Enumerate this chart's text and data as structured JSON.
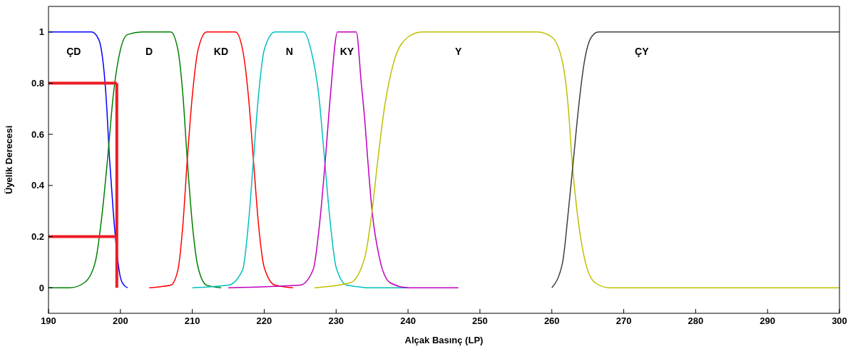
{
  "chart_data": {
    "type": "line",
    "xlabel": "Alçak Basınç (LP)",
    "ylabel": "Üyelik Derecesi",
    "xlim": [
      190,
      300
    ],
    "ylim": [
      -0.1,
      1.1
    ],
    "xticks": [
      190,
      200,
      210,
      220,
      230,
      240,
      250,
      260,
      270,
      280,
      290,
      300
    ],
    "yticks": [
      0,
      0.2,
      0.4,
      0.6,
      0.8,
      1
    ],
    "marker": "none",
    "line_style": "solid",
    "series": [
      {
        "name": "ÇD",
        "color": "#0000ff",
        "x": [
          190,
          196,
          197,
          198,
          198.5,
          199,
          200,
          200.5,
          201
        ],
        "values": [
          1,
          1,
          0.97,
          0.75,
          0.5,
          0.3,
          0.04,
          0.01,
          0
        ]
      },
      {
        "name": "D",
        "color": "#008000",
        "x": [
          190,
          193,
          195,
          196.5,
          197.5,
          198.2,
          199,
          200,
          201,
          203,
          207,
          208,
          208.7,
          209.3,
          210,
          210.8,
          212,
          214
        ],
        "values": [
          0,
          0,
          0.02,
          0.1,
          0.3,
          0.5,
          0.75,
          0.93,
          0.99,
          1,
          1,
          0.93,
          0.75,
          0.5,
          0.25,
          0.08,
          0.01,
          0
        ]
      },
      {
        "name": "KD",
        "color": "#ff0000",
        "x": [
          204,
          207,
          208,
          208.7,
          209.3,
          210,
          210.8,
          212,
          216,
          217,
          217.8,
          218.5,
          219.2,
          220,
          221.5,
          224
        ],
        "values": [
          0,
          0.01,
          0.07,
          0.25,
          0.5,
          0.75,
          0.93,
          1,
          1,
          0.93,
          0.75,
          0.5,
          0.25,
          0.08,
          0.01,
          0
        ]
      },
      {
        "name": "N",
        "color": "#00bfbf",
        "x": [
          210,
          215,
          217,
          217.8,
          218.5,
          219.2,
          220,
          221.5,
          225.5,
          226.5,
          227.6,
          228.4,
          229.2,
          230,
          231.5,
          235,
          240
        ],
        "values": [
          0,
          0.01,
          0.07,
          0.25,
          0.5,
          0.75,
          0.93,
          1,
          1,
          0.93,
          0.75,
          0.5,
          0.25,
          0.08,
          0.01,
          0,
          0
        ]
      },
      {
        "name": "KY",
        "color": "#bf00bf",
        "x": [
          215,
          225,
          226.8,
          227.7,
          228.5,
          229.2,
          230.2,
          232.8,
          233.5,
          234,
          234.4,
          235,
          236,
          237.5,
          240,
          247
        ],
        "values": [
          0,
          0.01,
          0.07,
          0.25,
          0.5,
          0.75,
          1,
          1,
          0.8,
          0.65,
          0.5,
          0.3,
          0.12,
          0.02,
          0,
          0
        ]
      },
      {
        "name": "Y",
        "color": "#bfbf00",
        "x": [
          227,
          232,
          234,
          235,
          235.8,
          236.7,
          238,
          240,
          242,
          258,
          260,
          261.5,
          262.3,
          262.8,
          263.5,
          264.5,
          266,
          268,
          300
        ],
        "values": [
          0,
          0.02,
          0.12,
          0.3,
          0.5,
          0.7,
          0.88,
          0.98,
          1,
          1,
          0.98,
          0.88,
          0.7,
          0.5,
          0.3,
          0.12,
          0.02,
          0,
          0
        ]
      },
      {
        "name": "ÇY",
        "color": "#404040",
        "x": [
          260,
          261.5,
          262.3,
          263,
          263.7,
          264.5,
          265.5,
          266.5,
          300
        ],
        "values": [
          0,
          0.1,
          0.3,
          0.5,
          0.7,
          0.88,
          0.98,
          1,
          1
        ]
      },
      {
        "color": "#ee1c24",
        "x": [
          190,
          199.5
        ],
        "values": [
          0.8,
          0.8
        ]
      },
      {
        "color": "#ee1c24",
        "x": [
          190,
          199.5
        ],
        "values": [
          0.2,
          0.2
        ]
      },
      {
        "color": "#ee1c24",
        "x": [
          199.5,
          199.5
        ],
        "values": [
          0,
          0.8
        ]
      }
    ]
  }
}
